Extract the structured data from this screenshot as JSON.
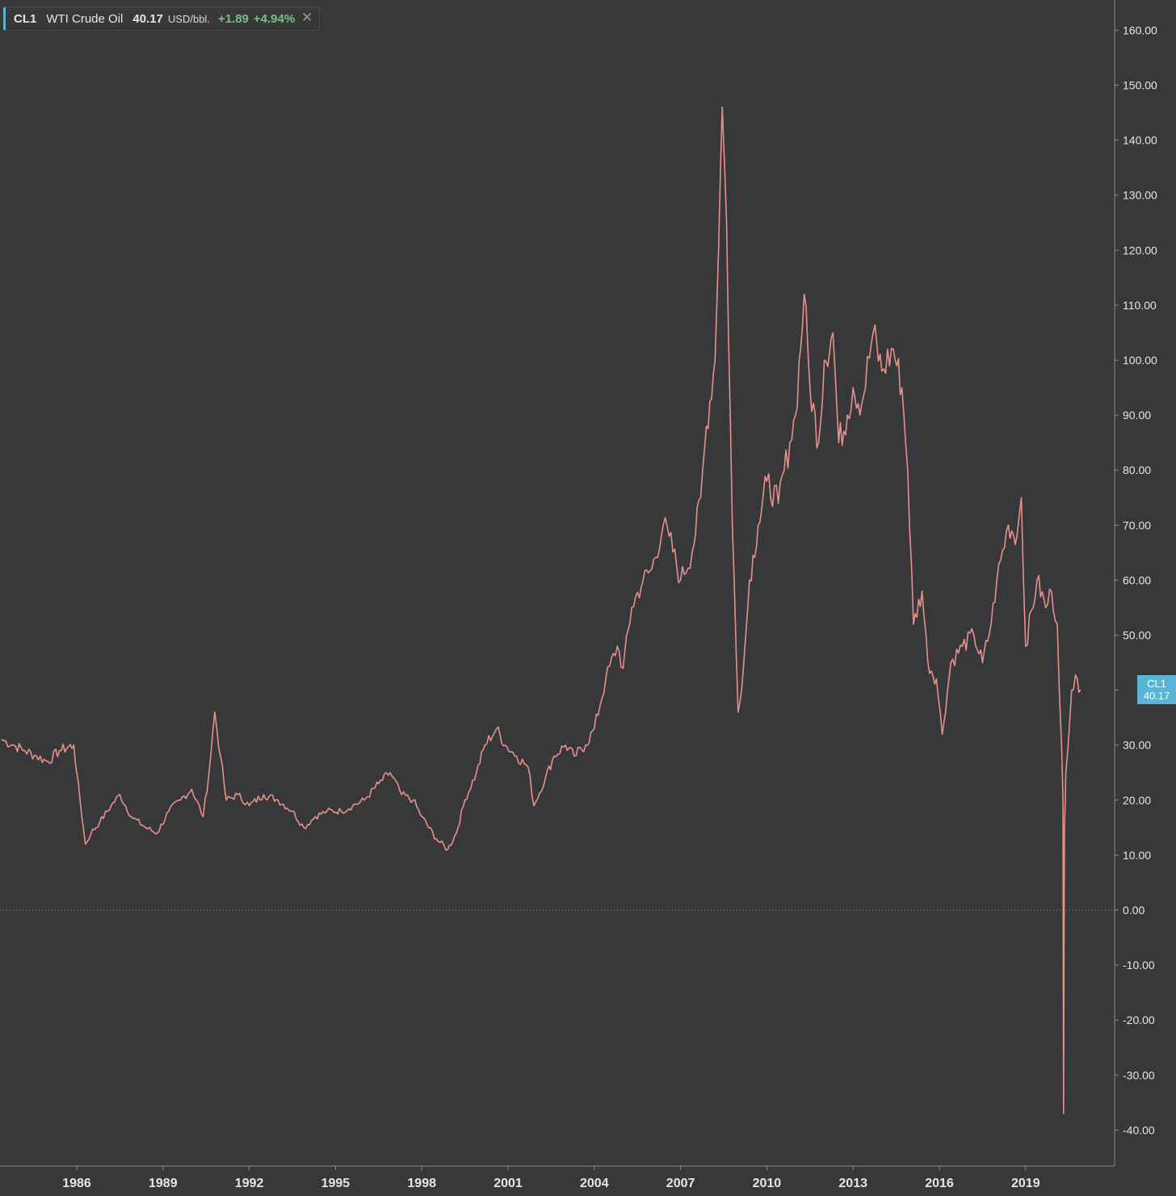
{
  "legend": {
    "symbol": "CL1",
    "name": "WTI Crude Oil",
    "price": "40.17",
    "unit": "USD/bbl.",
    "change": "+1.89",
    "change_pct": "+4.94%",
    "close_icon": "close-icon"
  },
  "price_badge": {
    "symbol": "CL1",
    "price": "40.17"
  },
  "colors": {
    "background": "#37383a",
    "line": "#e8908a",
    "badge": "#5ab4d6",
    "positive": "#76c08a",
    "axis_text": "#e6e6e6"
  },
  "chart_data": {
    "type": "line",
    "title": "",
    "xlabel": "",
    "ylabel": "",
    "xlim": [
      1983.4,
      2020.95
    ],
    "ylim": [
      -45,
      165
    ],
    "y_ticks": [
      160,
      150,
      140,
      130,
      120,
      110,
      100,
      90,
      80,
      70,
      60,
      50,
      40,
      30,
      20,
      10,
      0,
      -10,
      -20,
      -30,
      -40
    ],
    "y_tick_labels": [
      "160.00",
      "150.00",
      "140.00",
      "130.00",
      "120.00",
      "110.00",
      "100.00",
      "90.00",
      "80.00",
      "70.00",
      "60.00",
      "50.00",
      "",
      "30.00",
      "20.00",
      "10.00",
      "0.00",
      "-10.00",
      "-20.00",
      "-30.00",
      "-40.00"
    ],
    "x_ticks": [
      1986,
      1989,
      1992,
      1995,
      1998,
      2001,
      2004,
      2007,
      2010,
      2013,
      2016,
      2019
    ],
    "x_tick_labels": [
      "1986",
      "1989",
      "1992",
      "1995",
      "1998",
      "2001",
      "2004",
      "2007",
      "2010",
      "2013",
      "2016",
      "2019"
    ],
    "grid": false,
    "zero_line": "dotted",
    "series": [
      {
        "name": "CL1",
        "x": [
          1983.4,
          1983.8,
          1984.2,
          1984.6,
          1985.0,
          1985.4,
          1985.9,
          1986.0,
          1986.3,
          1986.5,
          1986.8,
          1987.2,
          1987.5,
          1987.9,
          1988.4,
          1988.8,
          1989.2,
          1989.6,
          1990.0,
          1990.4,
          1990.6,
          1990.8,
          1991.0,
          1991.2,
          1991.6,
          1992.0,
          1992.5,
          1993.0,
          1993.5,
          1993.9,
          1994.3,
          1994.7,
          1995.2,
          1995.6,
          1996.0,
          1996.5,
          1996.9,
          1997.3,
          1997.7,
          1998.0,
          1998.5,
          1998.9,
          1999.2,
          1999.5,
          1999.9,
          2000.2,
          2000.6,
          2000.9,
          2001.3,
          2001.7,
          2001.9,
          2002.3,
          2002.6,
          2003.0,
          2003.3,
          2003.7,
          2004.0,
          2004.4,
          2004.8,
          2005.0,
          2005.3,
          2005.7,
          2006.0,
          2006.4,
          2006.6,
          2007.0,
          2007.4,
          2007.7,
          2007.9,
          2008.2,
          2008.45,
          2008.6,
          2008.8,
          2009.0,
          2009.2,
          2009.4,
          2009.7,
          2010.0,
          2010.4,
          2010.8,
          2011.0,
          2011.3,
          2011.5,
          2011.8,
          2012.0,
          2012.3,
          2012.5,
          2012.8,
          2013.0,
          2013.3,
          2013.7,
          2014.0,
          2014.4,
          2014.7,
          2014.9,
          2015.1,
          2015.4,
          2015.6,
          2015.9,
          2016.1,
          2016.4,
          2016.8,
          2017.2,
          2017.5,
          2017.8,
          2018.0,
          2018.4,
          2018.7,
          2018.85,
          2019.0,
          2019.4,
          2019.7,
          2019.9,
          2020.1,
          2020.25,
          2020.3,
          2020.32,
          2020.35,
          2020.4,
          2020.6,
          2020.8,
          2020.9
        ],
        "y": [
          31,
          30,
          29,
          28,
          27,
          29,
          30,
          25,
          12,
          14,
          16,
          19,
          21,
          17,
          15,
          14,
          18,
          20,
          22,
          17,
          25,
          36,
          28,
          20,
          21,
          19,
          21,
          20,
          18,
          15,
          17,
          18,
          18,
          19,
          20,
          23,
          25,
          21,
          20,
          17,
          13,
          11,
          14,
          20,
          25,
          30,
          33,
          30,
          28,
          26,
          19,
          24,
          28,
          30,
          28,
          30,
          33,
          42,
          48,
          44,
          55,
          60,
          62,
          70,
          68,
          60,
          65,
          75,
          88,
          100,
          146,
          125,
          70,
          36,
          45,
          60,
          70,
          78,
          74,
          85,
          90,
          112,
          95,
          85,
          100,
          105,
          85,
          90,
          95,
          92,
          105,
          98,
          102,
          95,
          80,
          52,
          58,
          45,
          42,
          32,
          45,
          48,
          50,
          45,
          52,
          60,
          70,
          68,
          75,
          48,
          60,
          55,
          58,
          52,
          30,
          20,
          -37,
          15,
          25,
          40,
          42,
          40
        ]
      }
    ]
  }
}
